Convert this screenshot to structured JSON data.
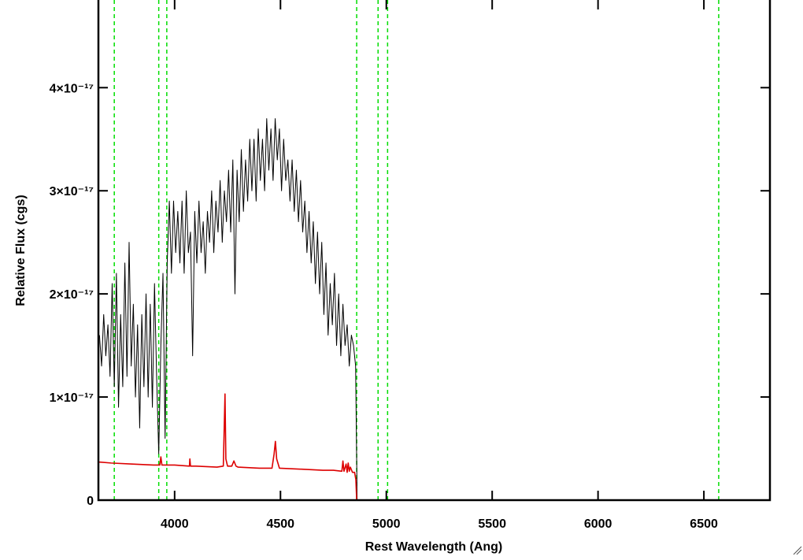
{
  "chart_data": {
    "type": "line",
    "xlabel": "Rest Wavelength (Ang)",
    "ylabel": "Relative Flux (cgs)",
    "xlim": [
      3640,
      6812
    ],
    "ylim": [
      0,
      4.85e-17
    ],
    "xticks": [
      4000,
      4500,
      5000,
      5500,
      6000,
      6500
    ],
    "yticks": [
      0,
      {
        "value": 1e-17,
        "label": "1×10⁻¹⁷"
      },
      {
        "value": 2e-17,
        "label": "2×10⁻¹⁷"
      },
      {
        "value": 3e-17,
        "label": "3×10⁻¹⁷"
      },
      {
        "value": 4e-17,
        "label": "4×10⁻¹⁷"
      }
    ],
    "grid": false,
    "reference_lines": {
      "color": "#00dd00",
      "style": "dashed",
      "x": [
        3715,
        3925,
        3963,
        4860,
        4961,
        5006,
        6570
      ]
    },
    "series": [
      {
        "color": "#000000",
        "x": [
          3645,
          3655,
          3665,
          3675,
          3685,
          3695,
          3705,
          3715,
          3725,
          3735,
          3745,
          3755,
          3765,
          3775,
          3785,
          3795,
          3805,
          3815,
          3825,
          3835,
          3845,
          3855,
          3865,
          3875,
          3885,
          3895,
          3905,
          3915,
          3925,
          3935,
          3945,
          3955,
          3965,
          3975,
          3985,
          3995,
          4005,
          4015,
          4025,
          4035,
          4045,
          4055,
          4065,
          4075,
          4085,
          4095,
          4105,
          4115,
          4125,
          4135,
          4145,
          4155,
          4165,
          4175,
          4185,
          4195,
          4205,
          4215,
          4225,
          4235,
          4245,
          4255,
          4265,
          4275,
          4285,
          4295,
          4305,
          4315,
          4325,
          4335,
          4345,
          4355,
          4365,
          4375,
          4385,
          4395,
          4405,
          4415,
          4425,
          4435,
          4445,
          4455,
          4465,
          4475,
          4485,
          4495,
          4505,
          4515,
          4525,
          4535,
          4545,
          4555,
          4565,
          4575,
          4585,
          4595,
          4605,
          4615,
          4625,
          4635,
          4645,
          4655,
          4665,
          4675,
          4685,
          4695,
          4705,
          4715,
          4725,
          4735,
          4745,
          4755,
          4765,
          4775,
          4785,
          4795,
          4805,
          4815,
          4825,
          4835,
          4845,
          4855,
          4862
        ],
        "values": [
          1.6e-17,
          1.3e-17,
          1.8e-17,
          1.4e-17,
          1.7e-17,
          1.2e-17,
          2.1e-17,
          1.1e-17,
          2.2e-17,
          9e-18,
          1.8e-17,
          1.1e-17,
          2.3e-17,
          1.2e-17,
          2.5e-17,
          1.3e-17,
          1.9e-17,
          1e-17,
          1.7e-17,
          7e-18,
          1.8e-17,
          1.1e-17,
          2e-17,
          1e-17,
          1.9e-17,
          9e-18,
          2.1e-17,
          1.2e-17,
          4.5e-18,
          1.5e-17,
          2.2e-17,
          6e-18,
          2.3e-17,
          2.9e-17,
          2.2e-17,
          2.9e-17,
          2.4e-17,
          2.8e-17,
          2.3e-17,
          2.9e-17,
          2.2e-17,
          3e-17,
          2.4e-17,
          2.6e-17,
          1.4e-17,
          2.8e-17,
          2.3e-17,
          2.9e-17,
          2.4e-17,
          2.7e-17,
          2.2e-17,
          2.8e-17,
          2.5e-17,
          3e-17,
          2.4e-17,
          2.9e-17,
          2.6e-17,
          3.1e-17,
          2.5e-17,
          3e-17,
          2.7e-17,
          3.2e-17,
          2.6e-17,
          3.3e-17,
          2e-17,
          3.2e-17,
          2.7e-17,
          3.4e-17,
          2.8e-17,
          3.3e-17,
          2.9e-17,
          3.5e-17,
          3e-17,
          3.5e-17,
          2.9e-17,
          3.6e-17,
          3.1e-17,
          3.5e-17,
          3e-17,
          3.7e-17,
          3.2e-17,
          3.6e-17,
          3.1e-17,
          3.7e-17,
          3.3e-17,
          3.6e-17,
          3e-17,
          3.5e-17,
          3.1e-17,
          3.3e-17,
          2.9e-17,
          3.3e-17,
          2.8e-17,
          3.2e-17,
          2.7e-17,
          3.1e-17,
          2.6e-17,
          2.9e-17,
          2.4e-17,
          2.8e-17,
          2.3e-17,
          2.7e-17,
          2.1e-17,
          2.6e-17,
          2e-17,
          2.5e-17,
          1.8e-17,
          2.3e-17,
          1.6e-17,
          2.1e-17,
          1.7e-17,
          2.2e-17,
          1.5e-17,
          2e-17,
          1.4e-17,
          1.9e-17,
          1.5e-17,
          1.7e-17,
          1.3e-17,
          1.6e-17,
          1.5e-17,
          1.3e-17,
          0
        ]
      },
      {
        "color": "#dd0000",
        "x": [
          3640,
          3700,
          3800,
          3900,
          3930,
          3935,
          3940,
          4000,
          4070,
          4072,
          4075,
          4100,
          4200,
          4230,
          4238,
          4242,
          4250,
          4270,
          4280,
          4290,
          4300,
          4400,
          4460,
          4470,
          4476,
          4482,
          4495,
          4600,
          4700,
          4750,
          4790,
          4795,
          4800,
          4810,
          4815,
          4820,
          4825,
          4830,
          4840,
          4850,
          4856,
          4860,
          6810
        ],
        "values": [
          3.7e-18,
          3.6e-18,
          3.5e-18,
          3.4e-18,
          3.4e-18,
          4.2e-18,
          3.4e-18,
          3.4e-18,
          3.3e-18,
          4e-18,
          3.3e-18,
          3.3e-18,
          3.2e-18,
          3.3e-18,
          1.03e-17,
          4e-18,
          3.3e-18,
          3.3e-18,
          3.8e-18,
          3.3e-18,
          3.2e-18,
          3.1e-18,
          3.1e-18,
          4.5e-18,
          5.7e-18,
          4e-18,
          3.1e-18,
          3e-18,
          2.9e-18,
          2.9e-18,
          2.8e-18,
          3.8e-18,
          2.8e-18,
          3.5e-18,
          2.7e-18,
          3.6e-18,
          2.8e-18,
          3.2e-18,
          2.7e-18,
          2.7e-18,
          2e-18,
          0,
          0
        ]
      }
    ]
  }
}
